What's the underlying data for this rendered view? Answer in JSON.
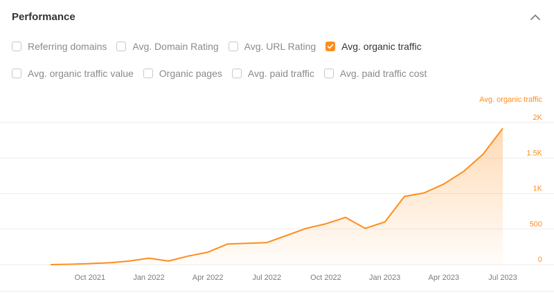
{
  "panel": {
    "title": "Performance"
  },
  "metrics_row1": [
    {
      "label": "Referring domains",
      "checked": false
    },
    {
      "label": "Avg. Domain Rating",
      "checked": false
    },
    {
      "label": "Avg. URL Rating",
      "checked": false
    },
    {
      "label": "Avg. organic traffic",
      "checked": true
    }
  ],
  "metrics_row2": [
    {
      "label": "Avg. organic traffic value",
      "checked": false
    },
    {
      "label": "Organic pages",
      "checked": false
    },
    {
      "label": "Avg. paid traffic",
      "checked": false
    },
    {
      "label": "Avg. paid traffic cost",
      "checked": false
    }
  ],
  "colors": {
    "accent": "#ff8c1a",
    "gridline": "#ededed",
    "tick_text": "#7a7a7a"
  },
  "chart_data": {
    "type": "area",
    "series": [
      {
        "name": "Avg. organic traffic",
        "x": [
          "2021-08-01",
          "2021-09-01",
          "2021-10-01",
          "2021-11-01",
          "2021-12-01",
          "2022-01-01",
          "2022-02-01",
          "2022-03-01",
          "2022-04-01",
          "2022-05-01",
          "2022-06-01",
          "2022-07-01",
          "2022-08-01",
          "2022-09-01",
          "2022-10-01",
          "2022-11-01",
          "2022-12-01",
          "2023-01-01",
          "2023-02-01",
          "2023-03-01",
          "2023-04-01",
          "2023-05-01",
          "2023-06-01",
          "2023-07-01"
        ],
        "values": [
          0,
          5,
          15,
          25,
          50,
          90,
          50,
          120,
          175,
          290,
          300,
          310,
          410,
          510,
          575,
          665,
          510,
          600,
          960,
          1010,
          1135,
          1310,
          1555,
          1920
        ]
      }
    ],
    "x_ticks": [
      "Oct 2021",
      "Jan 2022",
      "Apr 2022",
      "Jul 2022",
      "Oct 2022",
      "Jan 2023",
      "Apr 2023",
      "Jul 2023"
    ],
    "y_ticks": [
      "0",
      "500",
      "1K",
      "1.5K",
      "2K"
    ],
    "y_tick_values": [
      0,
      500,
      1000,
      1500,
      2000
    ],
    "ylim": [
      0,
      2000
    ],
    "y_axis_title": "Avg. organic traffic",
    "y_axis_position": "right",
    "grid": true
  }
}
